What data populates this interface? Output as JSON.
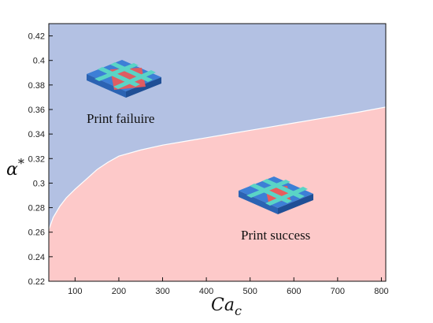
{
  "chart_data": {
    "type": "area",
    "title": "",
    "xlabel_main": "Ca",
    "xlabel_sub": "c",
    "ylabel_main": "α",
    "ylabel_sup": "*",
    "xlim": [
      40,
      810
    ],
    "ylim": [
      0.22,
      0.43
    ],
    "x_ticks": [
      100,
      200,
      300,
      400,
      500,
      600,
      700,
      800
    ],
    "y_ticks": [
      0.22,
      0.24,
      0.26,
      0.28,
      0.3,
      0.32,
      0.34,
      0.36,
      0.38,
      0.4,
      0.42
    ],
    "grid": false,
    "boundary": {
      "x": [
        40,
        50,
        65,
        80,
        100,
        125,
        150,
        175,
        200,
        250,
        300,
        350,
        400,
        450,
        500,
        550,
        600,
        650,
        700,
        750,
        810
      ],
      "y": [
        0.262,
        0.272,
        0.281,
        0.288,
        0.295,
        0.303,
        0.311,
        0.317,
        0.322,
        0.327,
        0.331,
        0.334,
        0.337,
        0.34,
        0.343,
        0.346,
        0.349,
        0.352,
        0.355,
        0.358,
        0.362
      ]
    },
    "regions": [
      {
        "label": "Print failuire",
        "color": "#b3c1e3",
        "side": "above"
      },
      {
        "label": "Print success",
        "color": "#fdc9c9",
        "side": "below"
      }
    ]
  }
}
